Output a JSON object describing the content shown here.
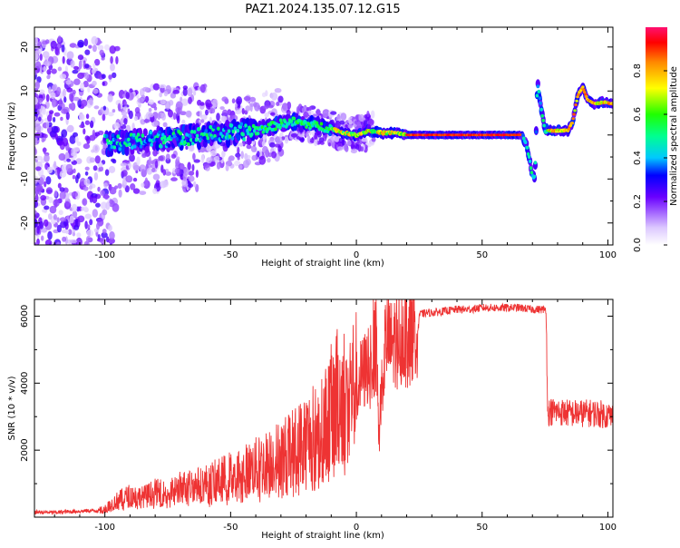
{
  "title": "PAZ1.2024.135.07.12.G15",
  "colors": {
    "snr_line": "#ee3333",
    "axis": "#000000"
  },
  "chart_data": [
    {
      "type": "heatmap",
      "xlabel": "Height of straight line (km)",
      "ylabel": "Frequency (Hz)",
      "xlim": [
        -128,
        102
      ],
      "ylim": [
        -25,
        24.5
      ],
      "x_ticks": [
        -100,
        -50,
        0,
        50,
        100
      ],
      "y_ticks": [
        -20,
        -10,
        0,
        10,
        20
      ],
      "x_tick_labels": [
        "-100",
        "-50",
        "0",
        "50",
        "100"
      ],
      "y_tick_labels": [
        "-20",
        "-10",
        "0",
        "10",
        "20"
      ],
      "colorbar": {
        "label": "Normalized spectral amplitude",
        "range": [
          0,
          1
        ],
        "ticks": [
          0,
          0.2,
          0.4,
          0.6,
          0.8
        ],
        "tick_labels": [
          "0.0",
          "0.2",
          "0.4",
          "0.6",
          "0.8"
        ]
      },
      "ridge": {
        "height_km": [
          -100,
          -90,
          -80,
          -70,
          -60,
          -50,
          -40,
          -30,
          -25,
          -20,
          -15,
          -10,
          -5,
          0,
          5,
          10,
          15,
          20,
          30,
          40,
          50,
          60,
          66,
          68,
          70,
          71,
          72,
          73,
          75,
          80,
          84,
          86,
          88,
          90,
          92,
          95,
          98,
          102
        ],
        "frequency_hz": [
          -2,
          -1.5,
          -1,
          -0.5,
          0,
          0.5,
          1,
          2.5,
          3,
          2.5,
          2,
          1.5,
          0.5,
          0,
          1,
          0.5,
          0.5,
          0,
          0,
          0,
          0,
          0,
          0,
          -3,
          -9,
          -10,
          12,
          8,
          1,
          1,
          1,
          3,
          9,
          11,
          8,
          7,
          7.5,
          7
        ]
      }
    },
    {
      "type": "line",
      "xlabel": "Height of straight line (km)",
      "ylabel": "SNR (10 * v/v)",
      "xlim": [
        -128,
        102
      ],
      "ylim": [
        0,
        6500
      ],
      "x_ticks": [
        -100,
        -50,
        0,
        50,
        100
      ],
      "y_ticks": [
        2000,
        4000,
        6000
      ],
      "x_tick_labels": [
        "-100",
        "-50",
        "0",
        "50",
        "100"
      ],
      "y_tick_labels": [
        "2000",
        "4000",
        "6000"
      ],
      "series": [
        {
          "x": [
            -128,
            -120,
            -110,
            -102,
            -98,
            -95,
            -90,
            -85,
            -80,
            -75,
            -70,
            -65,
            -60,
            -55,
            -50,
            -45,
            -40,
            -35,
            -30,
            -25,
            -20,
            -17,
            -15,
            -12,
            -10,
            -8,
            -5,
            -3,
            0,
            2,
            4,
            6,
            8,
            9,
            10,
            12,
            14,
            17,
            20,
            22,
            25,
            28,
            30,
            35,
            40,
            45,
            50,
            55,
            60,
            65,
            70,
            74,
            75.5,
            76,
            80,
            85,
            90,
            95,
            100,
            102
          ],
          "y": [
            150,
            140,
            180,
            200,
            350,
            500,
            650,
            600,
            750,
            700,
            900,
            950,
            1000,
            1100,
            1250,
            1350,
            1500,
            1650,
            1850,
            2050,
            2350,
            2500,
            2400,
            2900,
            3250,
            3550,
            3650,
            3800,
            3900,
            4200,
            4450,
            5000,
            5200,
            2300,
            4600,
            5350,
            5100,
            5550,
            5750,
            5850,
            6050,
            6100,
            6100,
            6150,
            6200,
            6200,
            6250,
            6250,
            6250,
            6250,
            6200,
            6200,
            6200,
            3150,
            3150,
            3100,
            3100,
            3100,
            3050,
            3000
          ]
        }
      ]
    }
  ]
}
